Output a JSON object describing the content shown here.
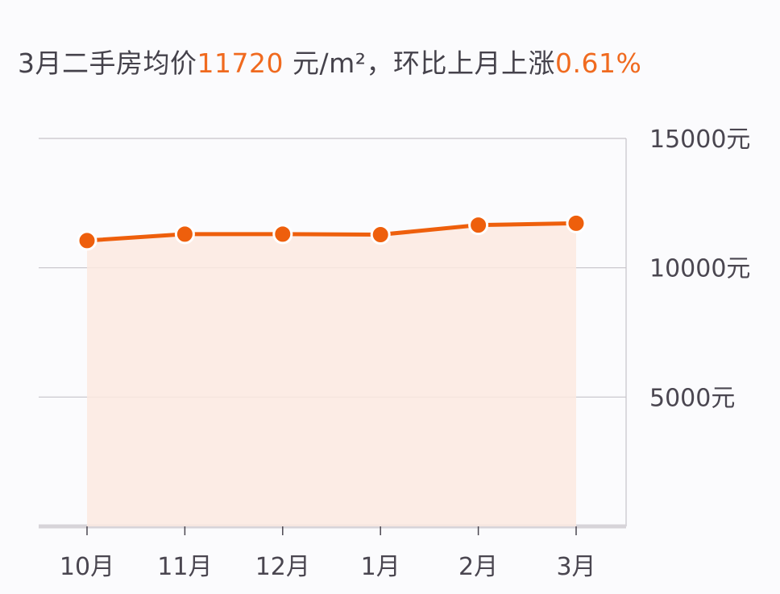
{
  "title": {
    "prefix": "3月二手房均价",
    "price": "11720",
    "unit": " 元/m²，环比上月上涨",
    "change": "0.61%"
  },
  "chart_data": {
    "type": "area",
    "categories": [
      "10月",
      "11月",
      "12月",
      "1月",
      "2月",
      "3月"
    ],
    "values": [
      11050,
      11300,
      11300,
      11280,
      11650,
      11720
    ],
    "ylim": [
      0,
      15000
    ],
    "yticks": [
      {
        "value": 15000,
        "label": "15000元"
      },
      {
        "value": 10000,
        "label": "10000元"
      },
      {
        "value": 5000,
        "label": "5000元"
      }
    ],
    "grid": true,
    "colors": {
      "line": "#ee5f0c",
      "fill": "#fbe9e1",
      "grid": "#c6c3c9",
      "axis": "#d7d4d9"
    }
  }
}
